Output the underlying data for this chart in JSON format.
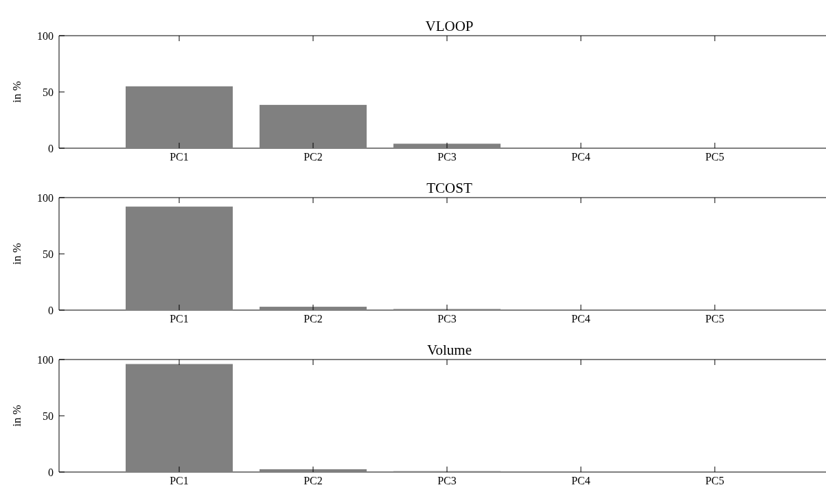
{
  "chart_data": [
    {
      "type": "bar",
      "title": "VLOOP",
      "ylabel": "in %",
      "categories": [
        "PC1",
        "PC2",
        "PC3",
        "PC4",
        "PC5"
      ],
      "values": [
        55,
        38.5,
        4,
        0.5,
        0
      ],
      "color": "#808080",
      "ylim": [
        0,
        100
      ],
      "yticks": [
        0,
        50,
        100
      ]
    },
    {
      "type": "bar",
      "title": "TCOST",
      "ylabel": "in %",
      "categories": [
        "PC1",
        "PC2",
        "PC3",
        "PC4",
        "PC5"
      ],
      "values": [
        92,
        3,
        1,
        0.5,
        0.5
      ],
      "color": "#808080",
      "ylim": [
        0,
        100
      ],
      "yticks": [
        0,
        50,
        100
      ]
    },
    {
      "type": "bar",
      "title": "Volume",
      "ylabel": "in %",
      "categories": [
        "PC1",
        "PC2",
        "PC3",
        "PC4",
        "PC5"
      ],
      "values": [
        96,
        2.5,
        0.8,
        0,
        0
      ],
      "color": "#808080",
      "ylim": [
        0,
        100
      ],
      "yticks": [
        0,
        50,
        100
      ]
    }
  ]
}
